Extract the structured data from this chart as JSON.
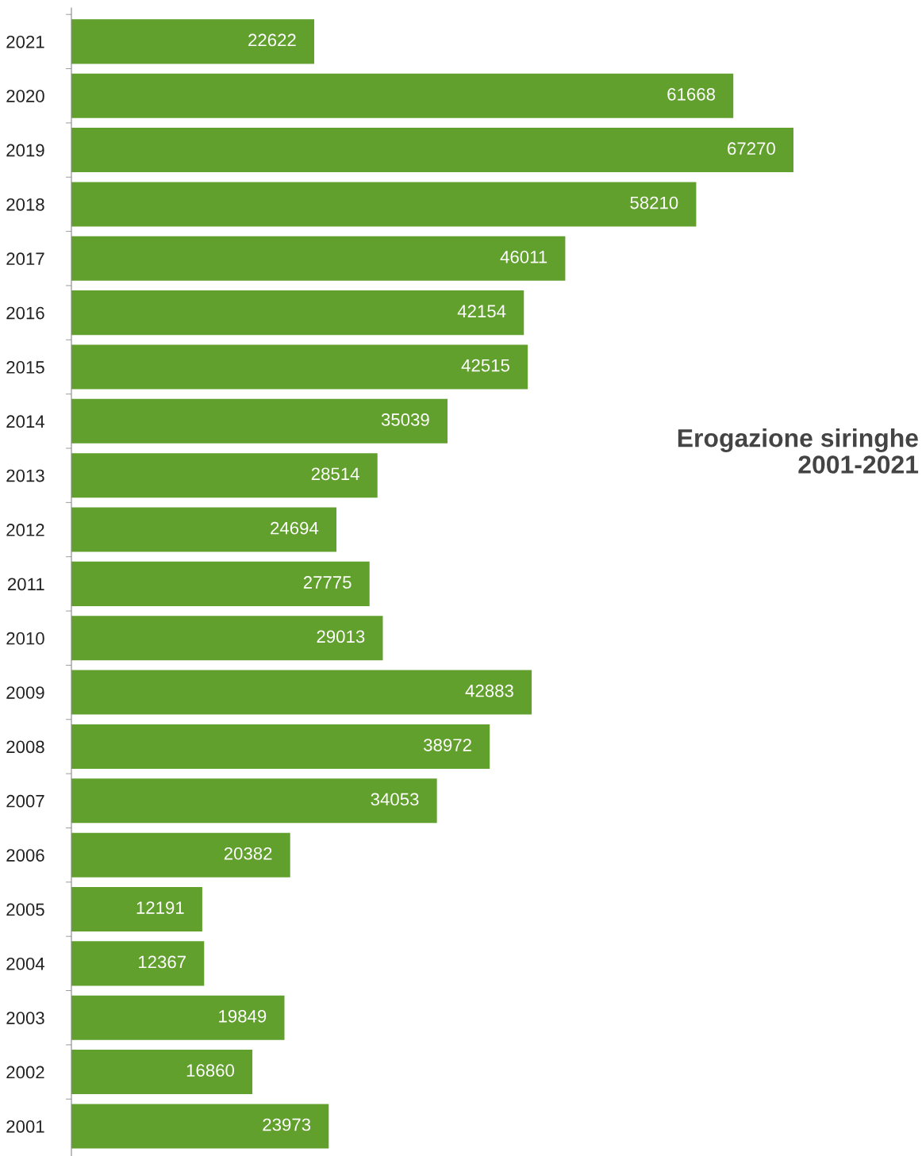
{
  "chart_data": {
    "type": "bar",
    "orientation": "horizontal",
    "title": "Erogazione siringhe\n2001-2021",
    "categories": [
      "2021",
      "2020",
      "2019",
      "2018",
      "2017",
      "2016",
      "2015",
      "2014",
      "2013",
      "2012",
      "2011",
      "2010",
      "2009",
      "2008",
      "2007",
      "2006",
      "2005",
      "2004",
      "2003",
      "2002",
      "2001"
    ],
    "values": [
      22622,
      61668,
      67270,
      58210,
      46011,
      42154,
      42515,
      35039,
      28514,
      24694,
      27775,
      29013,
      42883,
      38972,
      34053,
      20382,
      12191,
      12367,
      19849,
      16860,
      23973
    ],
    "color": "#62a02e",
    "data_labels": true,
    "tick_labels": "y",
    "grid": false
  }
}
